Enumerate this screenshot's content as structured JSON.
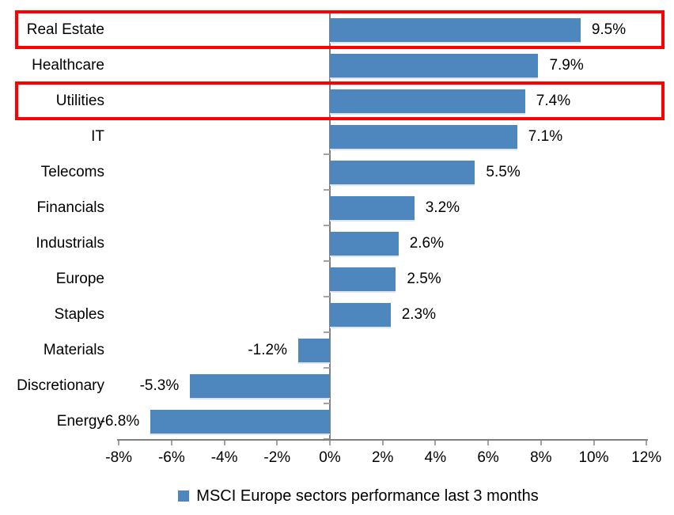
{
  "chart_data": {
    "type": "bar",
    "orientation": "horizontal",
    "title": "",
    "categories": [
      "Real Estate",
      "Healthcare",
      "Utilities",
      "IT",
      "Telecoms",
      "Financials",
      "Industrials",
      "Europe",
      "Staples",
      "Materials",
      "Discretionary",
      "Energy"
    ],
    "values": [
      9.5,
      7.9,
      7.4,
      7.1,
      5.5,
      3.2,
      2.6,
      2.5,
      2.3,
      -1.2,
      -5.3,
      -6.8
    ],
    "value_labels": [
      "9.5%",
      "7.9%",
      "7.4%",
      "7.1%",
      "5.5%",
      "3.2%",
      "2.6%",
      "2.5%",
      "2.3%",
      "-1.2%",
      "-5.3%",
      "-6.8%"
    ],
    "highlighted_categories": [
      "Real Estate",
      "Utilities"
    ],
    "x_ticks": [
      "-8%",
      "-6%",
      "-4%",
      "-2%",
      "0%",
      "2%",
      "4%",
      "6%",
      "8%",
      "10%",
      "12%"
    ],
    "x_tick_values": [
      -8,
      -6,
      -4,
      -2,
      0,
      2,
      4,
      6,
      8,
      10,
      12
    ],
    "xlim": [
      -8,
      12
    ],
    "grid": "off",
    "legend": "MSCI Europe sectors performance last 3 months",
    "legend_position": "bottom-center",
    "bar_color": "#4e87bd",
    "highlight_box_color": "#ff0000",
    "axis_color": "#7f7f7f",
    "tick_color": "#a3a3a3"
  }
}
